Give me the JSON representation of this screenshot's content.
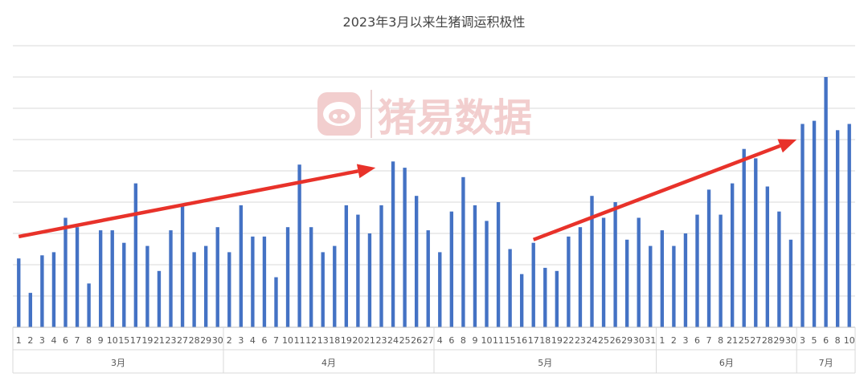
{
  "chart_data": {
    "type": "bar",
    "title": "2023年3月以来生猪调运积极性",
    "watermark": {
      "text": "猪易数据",
      "icon": "pig-logo-icon"
    },
    "colors": {
      "bar": "#4472C4",
      "arrow": "#E8322A",
      "grid": "#D9D9D9",
      "watermark": "#F2CECE"
    },
    "grid": true,
    "ylim": [
      0,
      90
    ],
    "groups": [
      {
        "month": "3月",
        "labels": [
          "1",
          "2",
          "3",
          "4",
          "6",
          "7",
          "8",
          "9",
          "10",
          "15",
          "17",
          "19",
          "21",
          "23",
          "27",
          "28",
          "29",
          "30"
        ],
        "values": [
          22,
          11,
          23,
          24,
          35,
          32,
          14,
          31,
          31,
          27,
          46,
          26,
          18,
          31,
          39,
          24,
          26,
          32
        ]
      },
      {
        "month": "4月",
        "labels": [
          "2",
          "3",
          "4",
          "6",
          "7",
          "10",
          "11",
          "12",
          "13",
          "18",
          "19",
          "20",
          "21",
          "23",
          "24",
          "25",
          "26",
          "27"
        ],
        "values": [
          24,
          39,
          29,
          29,
          16,
          32,
          52,
          32,
          24,
          26,
          39,
          36,
          30,
          39,
          53,
          51,
          42,
          31
        ]
      },
      {
        "month": "5月",
        "labels": [
          "4",
          "6",
          "8",
          "9",
          "10",
          "11",
          "15",
          "16",
          "17",
          "18",
          "19",
          "22",
          "23",
          "24",
          "25",
          "26",
          "29",
          "30",
          "31"
        ],
        "values": [
          24,
          37,
          48,
          39,
          34,
          40,
          25,
          17,
          27,
          19,
          18,
          29,
          32,
          42,
          35,
          40,
          28,
          35,
          26
        ]
      },
      {
        "month": "6月",
        "labels": [
          "1",
          "2",
          "3",
          "6",
          "7",
          "8",
          "21",
          "25",
          "27",
          "28",
          "29",
          "30"
        ],
        "values": [
          31,
          26,
          30,
          36,
          44,
          36,
          46,
          57,
          54,
          45,
          37,
          28
        ]
      },
      {
        "month": "7月",
        "labels": [
          "3",
          "5",
          "6",
          "8",
          "10"
        ],
        "values": [
          65,
          66,
          80,
          63,
          65
        ]
      }
    ],
    "trend_arrows": [
      {
        "from": {
          "bar_index": 0,
          "value": 29
        },
        "to": {
          "bar_index": 30.5,
          "value": 51
        }
      },
      {
        "from": {
          "bar_index": 44,
          "value": 28
        },
        "to": {
          "bar_index": 66.5,
          "value": 60
        }
      }
    ]
  }
}
